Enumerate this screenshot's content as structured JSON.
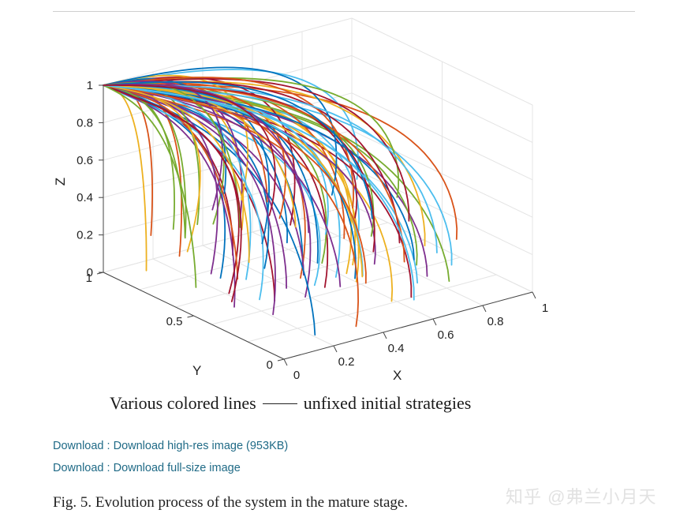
{
  "legend_caption": {
    "text": "Various colored lines",
    "suffix": "unfixed initial strategies"
  },
  "downloads": [
    {
      "prefix": "Download",
      "sep": " : ",
      "link": "Download high-res image (953KB)"
    },
    {
      "prefix": "Download",
      "sep": " : ",
      "link": "Download full-size image"
    }
  ],
  "figure_caption": "Fig. 5. Evolution process of the system in the mature stage.",
  "watermark": "知乎 @弗兰小月天",
  "chart_data": {
    "type": "line",
    "projection": "3d",
    "xlabel": "X",
    "ylabel": "Y",
    "zlabel": "Z",
    "xlim": [
      0,
      1
    ],
    "ylim": [
      0,
      1
    ],
    "zlim": [
      0,
      1
    ],
    "xticks": [
      "0",
      "0.2",
      "0.4",
      "0.6",
      "0.8",
      "1"
    ],
    "yticks": [
      "0",
      "0.5",
      "1"
    ],
    "zticks": [
      "0",
      "0.2",
      "0.4",
      "0.6",
      "0.8",
      "1"
    ],
    "grid": true,
    "line_colors": [
      "#0072BD",
      "#D95319",
      "#EDB120",
      "#7E2F8E",
      "#77AC30",
      "#4DBEEE",
      "#A2142F"
    ],
    "series_count": 84,
    "converges_to": [
      0,
      1,
      1
    ]
  }
}
